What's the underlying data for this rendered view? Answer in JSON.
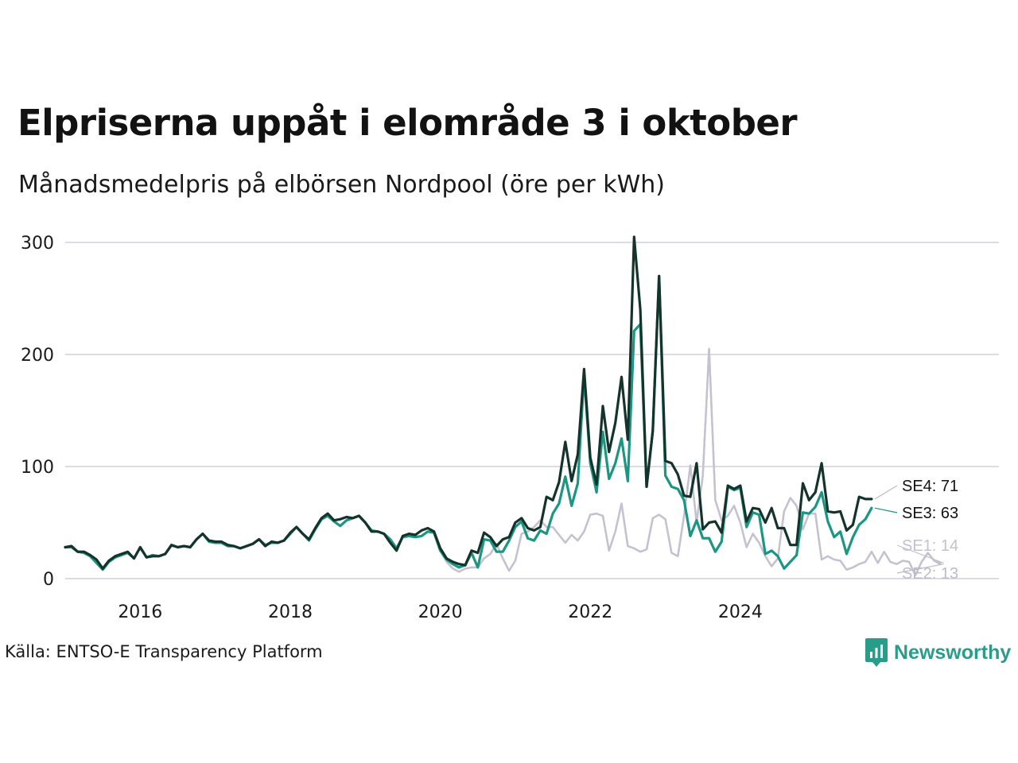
{
  "title": "Elpriserna uppåt i elområde 3 i oktober",
  "subtitle": "Månadsmedelpris på elbörsen Nordpool (öre per kWh)",
  "source": "Källa: ENTSO-E Transparency Platform",
  "brand": "Newsworthy",
  "colors": {
    "SE4": "#14332b",
    "SE3": "#1a9682",
    "SE1": "#c4c2d0",
    "SE2": "#bdbbc9",
    "grid": "#dcdce4",
    "brand": "#2a9d8a"
  },
  "chart_data": {
    "type": "line",
    "x_start": "2015-01",
    "x_interval": "month",
    "x_tick_labels": [
      "2016",
      "2018",
      "2020",
      "2022",
      "2024"
    ],
    "y_ticks": [
      0,
      100,
      200,
      300
    ],
    "ylim": [
      0,
      305
    ],
    "grid": true,
    "series": [
      {
        "name": "SE2",
        "label": "SE2: 13",
        "values": [
          28,
          28,
          24,
          23,
          20,
          14,
          8,
          15,
          19,
          21,
          23,
          18,
          27,
          19,
          21,
          20,
          22,
          29,
          28,
          29,
          28,
          35,
          40,
          33,
          32,
          32,
          29,
          29,
          27,
          29,
          31,
          35,
          29,
          32,
          32,
          34,
          40,
          46,
          40,
          34,
          44,
          53,
          56,
          51,
          47,
          52,
          54,
          56,
          50,
          43,
          42,
          40,
          35,
          27,
          37,
          38,
          37,
          38,
          42,
          41,
          25,
          15,
          9,
          6,
          9,
          10,
          10,
          18,
          22,
          31,
          18,
          7,
          16,
          40,
          42,
          46,
          52,
          46,
          46,
          39,
          32,
          39,
          34,
          42,
          57,
          58,
          56,
          25,
          42,
          67,
          29,
          27,
          24,
          26,
          54,
          57,
          53,
          23,
          20,
          56,
          101,
          50,
          92,
          205,
          70,
          52,
          56,
          65,
          50,
          28,
          40,
          32,
          20,
          11,
          18,
          60,
          72,
          65,
          44,
          58,
          58,
          17,
          20,
          17,
          16,
          8,
          10,
          13,
          15,
          24,
          14,
          24,
          15,
          13,
          16,
          15,
          3,
          15,
          23,
          16,
          13
        ]
      },
      {
        "name": "SE1",
        "label": "SE1: 14",
        "values": [
          28,
          28,
          24,
          23,
          20,
          14,
          8,
          15,
          19,
          21,
          23,
          18,
          27,
          19,
          21,
          20,
          22,
          29,
          28,
          29,
          28,
          35,
          40,
          33,
          32,
          32,
          29,
          29,
          27,
          29,
          31,
          35,
          29,
          32,
          32,
          34,
          40,
          46,
          40,
          34,
          44,
          53,
          56,
          51,
          47,
          52,
          54,
          56,
          50,
          43,
          42,
          40,
          35,
          27,
          37,
          38,
          37,
          38,
          42,
          41,
          25,
          15,
          9,
          6,
          9,
          10,
          10,
          18,
          22,
          31,
          18,
          7,
          16,
          40,
          42,
          46,
          52,
          46,
          46,
          39,
          32,
          39,
          34,
          42,
          57,
          58,
          56,
          25,
          42,
          67,
          29,
          27,
          24,
          26,
          54,
          57,
          53,
          23,
          20,
          56,
          101,
          50,
          92,
          205,
          70,
          52,
          56,
          65,
          50,
          28,
          40,
          32,
          20,
          11,
          18,
          60,
          72,
          65,
          44,
          58,
          58,
          17,
          20,
          17,
          16,
          8,
          10,
          13,
          15,
          24,
          14,
          24,
          15,
          13,
          16,
          15,
          3,
          15,
          23,
          16,
          14
        ]
      },
      {
        "name": "SE3",
        "label": "SE3: 63",
        "values": [
          28,
          28,
          24,
          23,
          20,
          14,
          8,
          15,
          19,
          21,
          23,
          18,
          28,
          19,
          21,
          20,
          22,
          30,
          28,
          29,
          28,
          35,
          40,
          33,
          32,
          32,
          29,
          29,
          27,
          29,
          31,
          35,
          30,
          32,
          32,
          34,
          40,
          46,
          40,
          34,
          44,
          53,
          56,
          51,
          47,
          52,
          54,
          56,
          50,
          43,
          42,
          40,
          35,
          27,
          37,
          38,
          37,
          38,
          42,
          41,
          25,
          17,
          13,
          10,
          12,
          23,
          10,
          35,
          34,
          24,
          24,
          34,
          46,
          51,
          36,
          34,
          43,
          40,
          58,
          67,
          91,
          65,
          85,
          182,
          103,
          77,
          131,
          89,
          103,
          125,
          87,
          221,
          227,
          82,
          132,
          270,
          92,
          82,
          80,
          70,
          38,
          52,
          36,
          36,
          24,
          33,
          82,
          79,
          81,
          46,
          59,
          57,
          22,
          25,
          20,
          9,
          15,
          21,
          59,
          58,
          64,
          77,
          51,
          37,
          42,
          22,
          37,
          48,
          53,
          63
        ]
      },
      {
        "name": "SE4",
        "label": "SE4: 71",
        "values": [
          28,
          29,
          24,
          24,
          21,
          17,
          9,
          16,
          20,
          22,
          24,
          18,
          28,
          19,
          20,
          20,
          22,
          30,
          28,
          29,
          28,
          35,
          40,
          34,
          33,
          33,
          30,
          29,
          27,
          29,
          31,
          35,
          29,
          33,
          32,
          34,
          41,
          46,
          40,
          35,
          45,
          54,
          58,
          52,
          53,
          55,
          54,
          56,
          50,
          42,
          42,
          40,
          32,
          25,
          38,
          40,
          39,
          43,
          45,
          42,
          27,
          18,
          15,
          13,
          12,
          25,
          23,
          41,
          37,
          29,
          35,
          37,
          50,
          54,
          45,
          43,
          46,
          73,
          70,
          86,
          122,
          87,
          111,
          187,
          108,
          84,
          154,
          113,
          139,
          180,
          124,
          305,
          240,
          82,
          132,
          270,
          105,
          103,
          93,
          74,
          73,
          103,
          44,
          50,
          51,
          41,
          83,
          80,
          83,
          51,
          63,
          62,
          50,
          63,
          45,
          45,
          30,
          30,
          85,
          70,
          77,
          103,
          60,
          59,
          60,
          43,
          48,
          73,
          71,
          71
        ]
      }
    ]
  }
}
